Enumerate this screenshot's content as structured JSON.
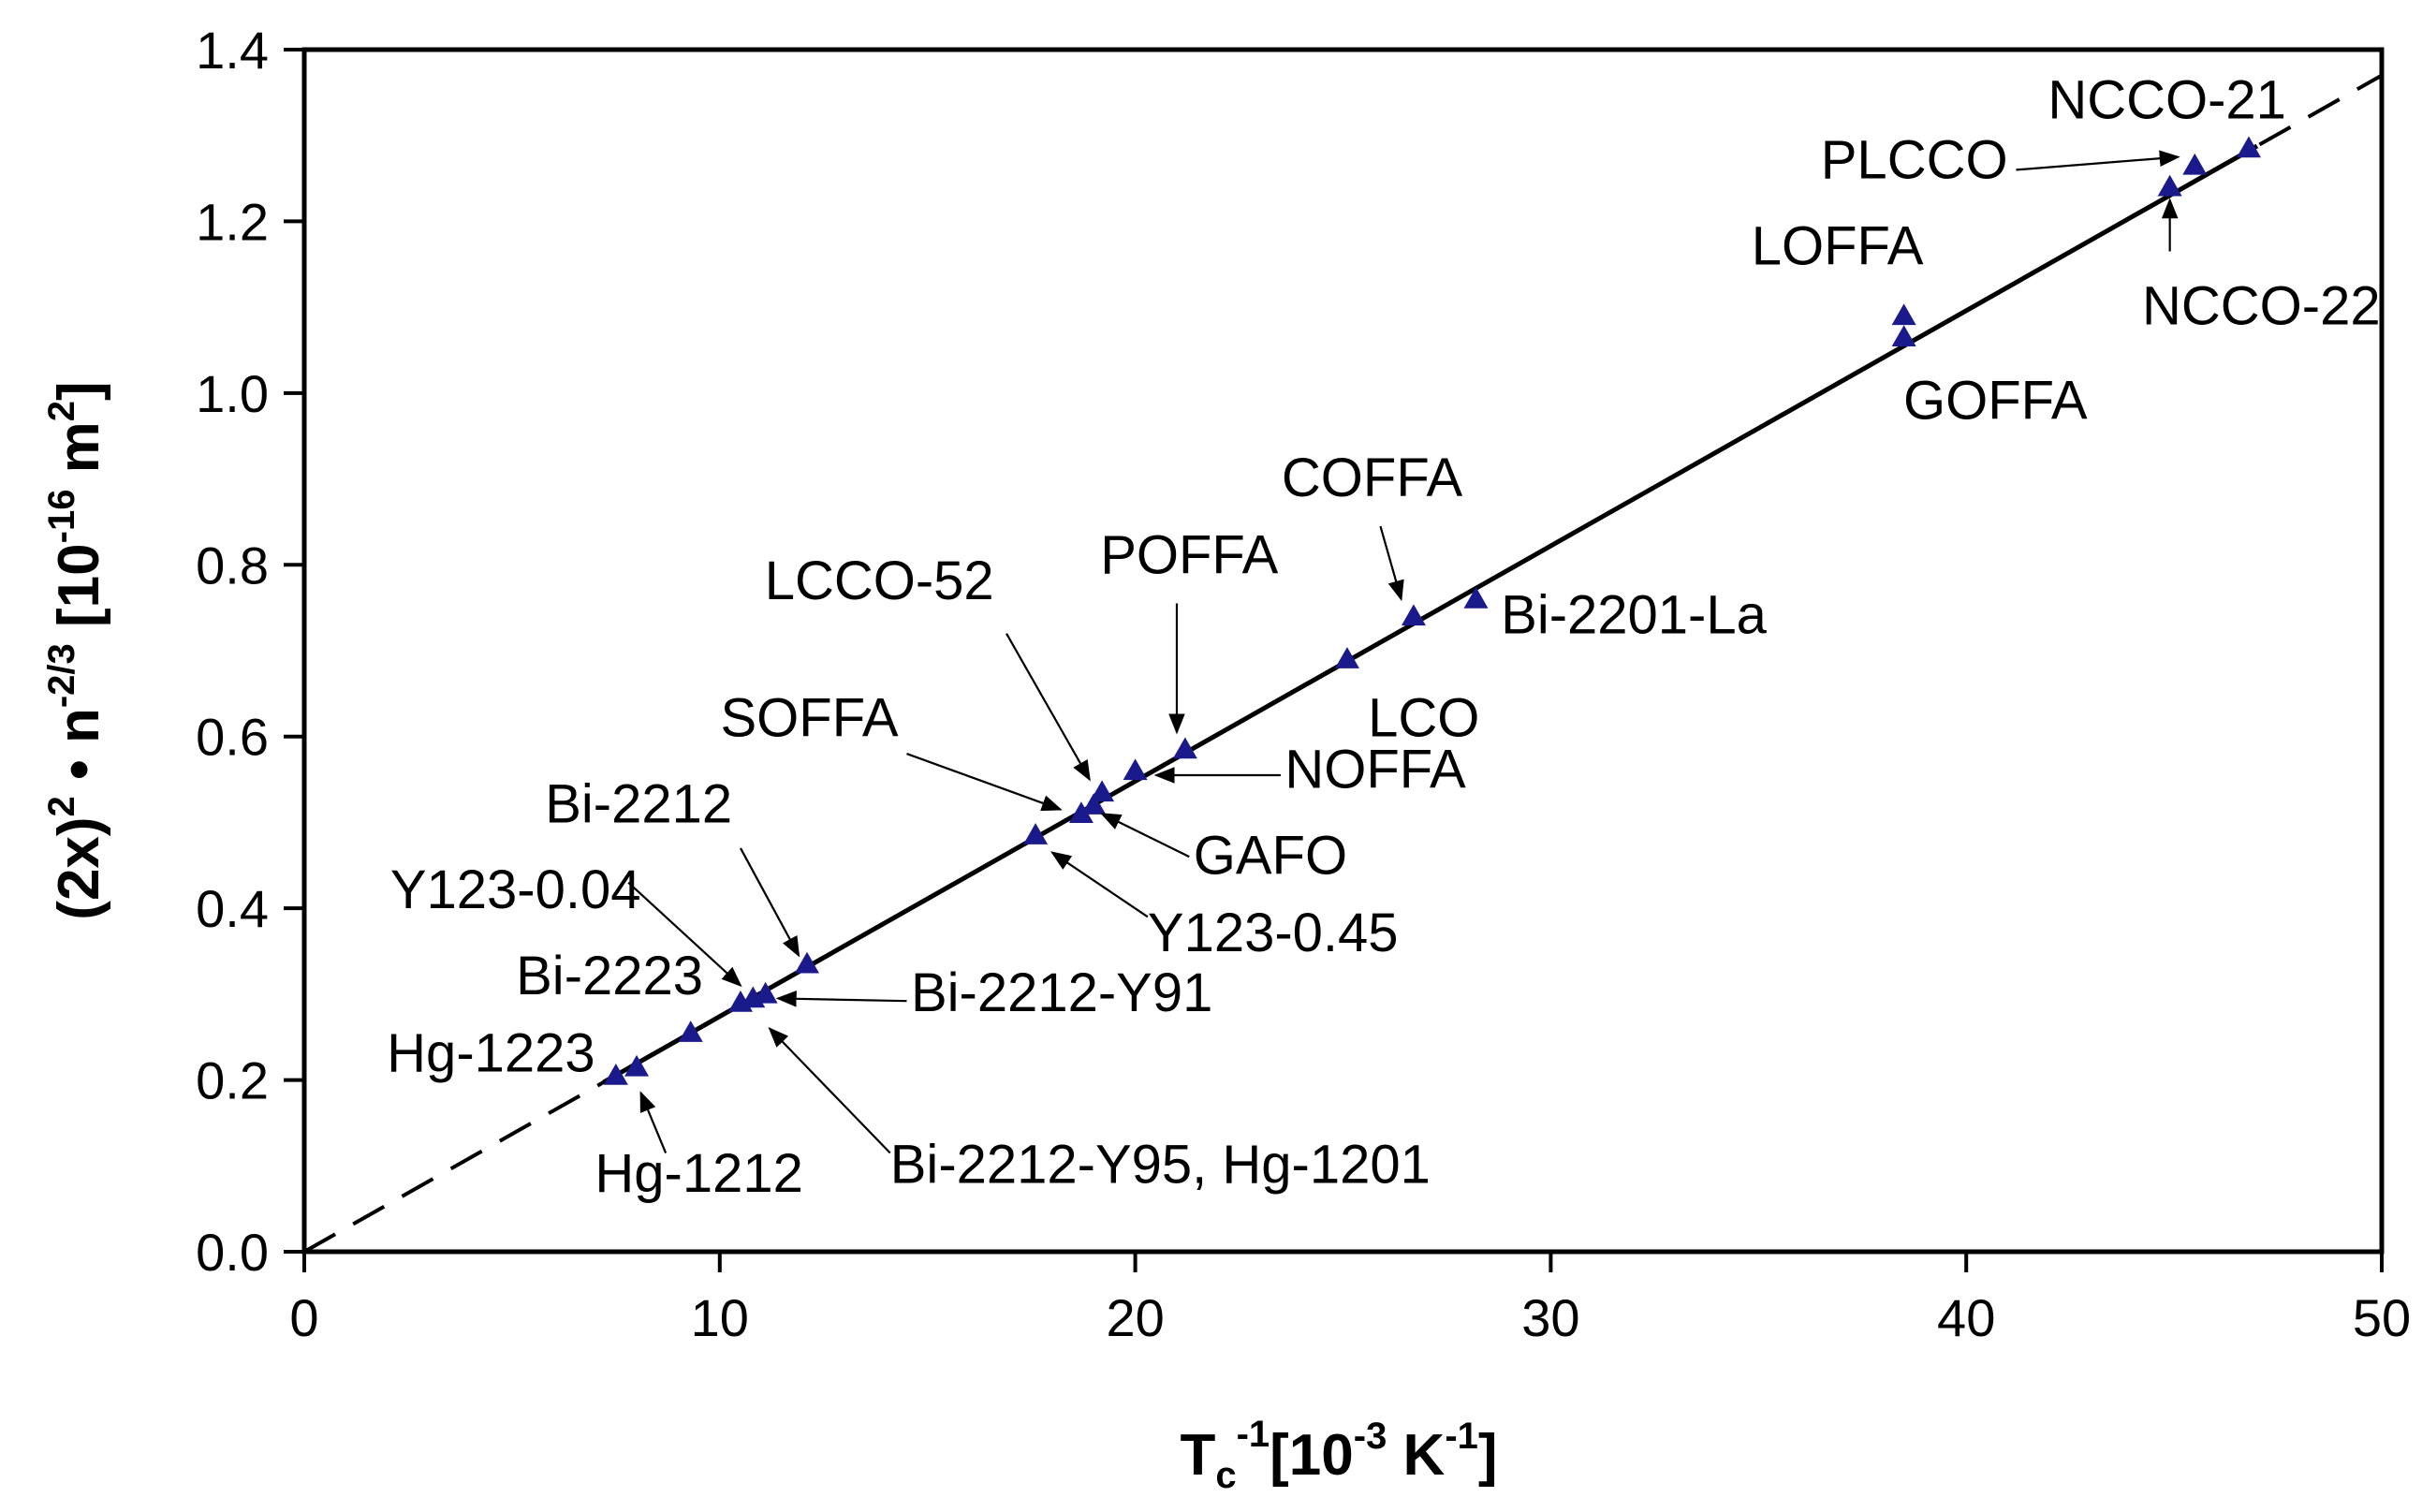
{
  "chart_data": {
    "type": "scatter",
    "title": "",
    "xlabel": {
      "base": "T",
      "sub": "c",
      "sup": "-1",
      "unit_pre": "[10",
      "unit_exp": "-3",
      "unit_mid": " K",
      "unit_exp2": "-1",
      "unit_post": "]"
    },
    "ylabel": {
      "pre": "(2x)",
      "sup1": "2",
      "mid": " • n",
      "sup2": "-2/3",
      "unit_pre": " [10",
      "unit_exp": "-16",
      "unit_mid": " m",
      "unit_exp2": "2",
      "unit_post": "]"
    },
    "xlim": [
      0,
      50
    ],
    "ylim": [
      0.0,
      1.4
    ],
    "x_ticks": [
      0,
      10,
      20,
      30,
      40,
      50
    ],
    "x_tick_labels": [
      "0",
      "10",
      "20",
      "30",
      "40",
      "50"
    ],
    "y_ticks": [
      0.0,
      0.2,
      0.4,
      0.6,
      0.8,
      1.0,
      1.2,
      1.4
    ],
    "y_tick_labels": [
      "0.0",
      "0.2",
      "0.4",
      "0.6",
      "0.8",
      "1.0",
      "1.2",
      "1.4"
    ],
    "grid": false,
    "fit_line": {
      "slope": 0.0274,
      "intercept": 0.0,
      "solid_range": [
        7.2,
        47.0
      ],
      "dashed": true
    },
    "marker_color": "#1a1a8c",
    "points": [
      {
        "x": 7.5,
        "y": 0.205
      },
      {
        "x": 8.0,
        "y": 0.215
      },
      {
        "x": 9.3,
        "y": 0.255
      },
      {
        "x": 10.5,
        "y": 0.29
      },
      {
        "x": 10.8,
        "y": 0.295
      },
      {
        "x": 11.1,
        "y": 0.3
      },
      {
        "x": 12.1,
        "y": 0.335
      },
      {
        "x": 17.6,
        "y": 0.485
      },
      {
        "x": 18.7,
        "y": 0.51
      },
      {
        "x": 19.0,
        "y": 0.52
      },
      {
        "x": 19.2,
        "y": 0.535
      },
      {
        "x": 20.0,
        "y": 0.56
      },
      {
        "x": 21.2,
        "y": 0.585
      },
      {
        "x": 25.1,
        "y": 0.69
      },
      {
        "x": 26.7,
        "y": 0.74
      },
      {
        "x": 28.2,
        "y": 0.76
      },
      {
        "x": 38.5,
        "y": 1.065
      },
      {
        "x": 38.5,
        "y": 1.09
      },
      {
        "x": 44.9,
        "y": 1.24
      },
      {
        "x": 45.5,
        "y": 1.265
      },
      {
        "x": 46.8,
        "y": 1.285
      }
    ],
    "annotations": [
      {
        "text": "Hg-1223",
        "tx": 7.0,
        "ty": 0.21,
        "anchor": "end",
        "arrow": null
      },
      {
        "text": "Hg-1212",
        "tx": 9.5,
        "ty": 0.07,
        "anchor": "middle",
        "arrow": {
          "from": [
            8.7,
            0.115
          ],
          "to": [
            8.1,
            0.185
          ]
        }
      },
      {
        "text": "Bi-2223",
        "tx": 9.6,
        "ty": 0.3,
        "anchor": "end",
        "arrow": null
      },
      {
        "text": "Y123-0.04",
        "tx": 8.1,
        "ty": 0.4,
        "anchor": "end",
        "arrow": {
          "from": [
            7.8,
            0.43
          ],
          "to": [
            10.5,
            0.31
          ]
        }
      },
      {
        "text": "Bi-2212",
        "tx": 10.3,
        "ty": 0.5,
        "anchor": "end",
        "arrow": {
          "from": [
            10.5,
            0.47
          ],
          "to": [
            11.9,
            0.345
          ]
        }
      },
      {
        "text": "Bi-2212-Y91",
        "tx": 14.6,
        "ty": 0.28,
        "anchor": "start",
        "arrow": {
          "from": [
            14.5,
            0.292
          ],
          "to": [
            11.4,
            0.295
          ]
        }
      },
      {
        "text": "Bi-2212-Y95, Hg-1201",
        "tx": 14.1,
        "ty": 0.08,
        "anchor": "start",
        "arrow": {
          "from": [
            14.1,
            0.115
          ],
          "to": [
            11.2,
            0.26
          ]
        }
      },
      {
        "text": "SOFFA",
        "tx": 14.3,
        "ty": 0.6,
        "anchor": "end",
        "arrow": {
          "from": [
            14.5,
            0.58
          ],
          "to": [
            18.2,
            0.515
          ]
        }
      },
      {
        "text": "LCCO-52",
        "tx": 16.6,
        "ty": 0.76,
        "anchor": "end",
        "arrow": {
          "from": [
            16.9,
            0.72
          ],
          "to": [
            18.9,
            0.55
          ]
        }
      },
      {
        "text": "Y123-0.45",
        "tx": 20.3,
        "ty": 0.35,
        "anchor": "start",
        "arrow": {
          "from": [
            20.3,
            0.39
          ],
          "to": [
            18.0,
            0.465
          ]
        }
      },
      {
        "text": "GAFO",
        "tx": 21.4,
        "ty": 0.44,
        "anchor": "start",
        "arrow": {
          "from": [
            21.3,
            0.46
          ],
          "to": [
            19.2,
            0.51
          ]
        }
      },
      {
        "text": "NOFFA",
        "tx": 23.6,
        "ty": 0.54,
        "anchor": "start",
        "arrow": {
          "from": [
            23.5,
            0.555
          ],
          "to": [
            20.5,
            0.555
          ]
        }
      },
      {
        "text": "POFFA",
        "tx": 21.3,
        "ty": 0.79,
        "anchor": "middle",
        "arrow": {
          "from": [
            21.0,
            0.755
          ],
          "to": [
            21.0,
            0.605
          ]
        }
      },
      {
        "text": "LCO",
        "tx": 25.6,
        "ty": 0.6,
        "anchor": "start",
        "arrow": null
      },
      {
        "text": "COFFA",
        "tx": 25.7,
        "ty": 0.88,
        "anchor": "middle",
        "arrow": {
          "from": [
            25.9,
            0.845
          ],
          "to": [
            26.4,
            0.76
          ]
        }
      },
      {
        "text": "Bi-2201-La",
        "tx": 28.8,
        "ty": 0.72,
        "anchor": "start",
        "arrow": null
      },
      {
        "text": "LOFFA",
        "tx": 36.9,
        "ty": 1.15,
        "anchor": "middle",
        "arrow": null
      },
      {
        "text": "GOFFA",
        "tx": 40.7,
        "ty": 0.97,
        "anchor": "middle",
        "arrow": null
      },
      {
        "text": "PLCCO",
        "tx": 41.0,
        "ty": 1.25,
        "anchor": "end",
        "arrow": {
          "from": [
            41.2,
            1.26
          ],
          "to": [
            45.1,
            1.275
          ]
        }
      },
      {
        "text": "NCCO-21",
        "tx": 47.7,
        "ty": 1.32,
        "anchor": "end",
        "arrow": null
      },
      {
        "text": "NCCO-22",
        "tx": 47.1,
        "ty": 1.08,
        "anchor": "middle",
        "arrow": {
          "from": [
            44.9,
            1.165
          ],
          "to": [
            44.9,
            1.225
          ]
        }
      }
    ]
  }
}
